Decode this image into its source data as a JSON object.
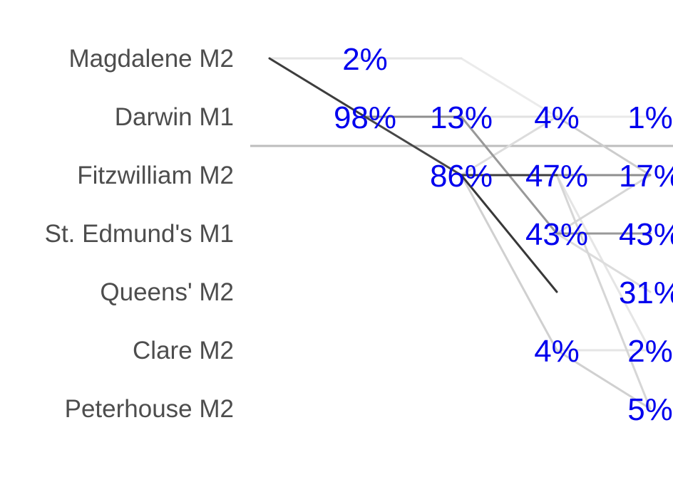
{
  "chart_data": {
    "type": "line",
    "rows": [
      "Magdalene M2",
      "Darwin M1",
      "Fitzwilliam M2",
      "St. Edmund's M1",
      "Queens' M2",
      "Clare M2",
      "Peterhouse M2"
    ],
    "days": [
      0,
      1,
      2,
      3,
      4
    ],
    "start_row": "Magdalene M2",
    "divider_after_row": "Darwin M1",
    "probabilities": [
      {
        "day": 1,
        "row": "Magdalene M2",
        "label": "2%"
      },
      {
        "day": 1,
        "row": "Darwin M1",
        "label": "98%"
      },
      {
        "day": 2,
        "row": "Darwin M1",
        "label": "13%"
      },
      {
        "day": 2,
        "row": "Fitzwilliam M2",
        "label": "86%"
      },
      {
        "day": 3,
        "row": "Darwin M1",
        "label": "4%"
      },
      {
        "day": 3,
        "row": "Fitzwilliam M2",
        "label": "47%"
      },
      {
        "day": 3,
        "row": "St. Edmund's M1",
        "label": "43%"
      },
      {
        "day": 3,
        "row": "Clare M2",
        "label": "4%"
      },
      {
        "day": 4,
        "row": "Darwin M1",
        "label": "1%"
      },
      {
        "day": 4,
        "row": "Fitzwilliam M2",
        "label": "17%"
      },
      {
        "day": 4,
        "row": "St. Edmund's M1",
        "label": "43%"
      },
      {
        "day": 4,
        "row": "Queens' M2",
        "label": "31%"
      },
      {
        "day": 4,
        "row": "Clare M2",
        "label": "2%"
      },
      {
        "day": 4,
        "row": "Peterhouse M2",
        "label": "5%"
      }
    ],
    "transitions": [
      {
        "from_day": 0,
        "from_row": "Magdalene M2",
        "to_row": "Magdalene M2",
        "weight": 0.08
      },
      {
        "from_day": 0,
        "from_row": "Magdalene M2",
        "to_row": "Darwin M1",
        "weight": 0.9
      },
      {
        "from_day": 1,
        "from_row": "Magdalene M2",
        "to_row": "Magdalene M2",
        "weight": 0.08
      },
      {
        "from_day": 1,
        "from_row": "Darwin M1",
        "to_row": "Darwin M1",
        "weight": 0.5
      },
      {
        "from_day": 1,
        "from_row": "Darwin M1",
        "to_row": "Fitzwilliam M2",
        "weight": 0.85
      },
      {
        "from_day": 2,
        "from_row": "Magdalene M2",
        "to_row": "Darwin M1",
        "weight": 0.05
      },
      {
        "from_day": 2,
        "from_row": "Darwin M1",
        "to_row": "Darwin M1",
        "weight": 0.1
      },
      {
        "from_day": 2,
        "from_row": "Darwin M1",
        "to_row": "St. Edmund's M1",
        "weight": 0.45
      },
      {
        "from_day": 2,
        "from_row": "Fitzwilliam M2",
        "to_row": "Darwin M1",
        "weight": 0.12
      },
      {
        "from_day": 2,
        "from_row": "Fitzwilliam M2",
        "to_row": "Fitzwilliam M2",
        "weight": 0.9
      },
      {
        "from_day": 2,
        "from_row": "Fitzwilliam M2",
        "to_row": "Queens' M2",
        "weight": 0.92
      },
      {
        "from_day": 2,
        "from_row": "Fitzwilliam M2",
        "to_row": "Clare M2",
        "weight": 0.18
      },
      {
        "from_day": 3,
        "from_row": "Darwin M1",
        "to_row": "Darwin M1",
        "weight": 0.06
      },
      {
        "from_day": 3,
        "from_row": "Darwin M1",
        "to_row": "Fitzwilliam M2",
        "weight": 0.2
      },
      {
        "from_day": 3,
        "from_row": "Fitzwilliam M2",
        "to_row": "Fitzwilliam M2",
        "weight": 0.5
      },
      {
        "from_day": 3,
        "from_row": "Fitzwilliam M2",
        "to_row": "Clare M2",
        "weight": 0.08
      },
      {
        "from_day": 3,
        "from_row": "Fitzwilliam M2",
        "to_row": "Peterhouse M2",
        "weight": 0.15
      },
      {
        "from_day": 3,
        "from_row": "St. Edmund's M1",
        "to_row": "Fitzwilliam M2",
        "weight": 0.15
      },
      {
        "from_day": 3,
        "from_row": "St. Edmund's M1",
        "to_row": "St. Edmund's M1",
        "weight": 0.45
      },
      {
        "from_day": 3,
        "from_row": "St. Edmund's M1",
        "to_row": "Queens' M2",
        "weight": 0.12
      },
      {
        "from_day": 3,
        "from_row": "Clare M2",
        "to_row": "Clare M2",
        "weight": 0.08
      },
      {
        "from_day": 3,
        "from_row": "Clare M2",
        "to_row": "Peterhouse M2",
        "weight": 0.18
      }
    ]
  }
}
